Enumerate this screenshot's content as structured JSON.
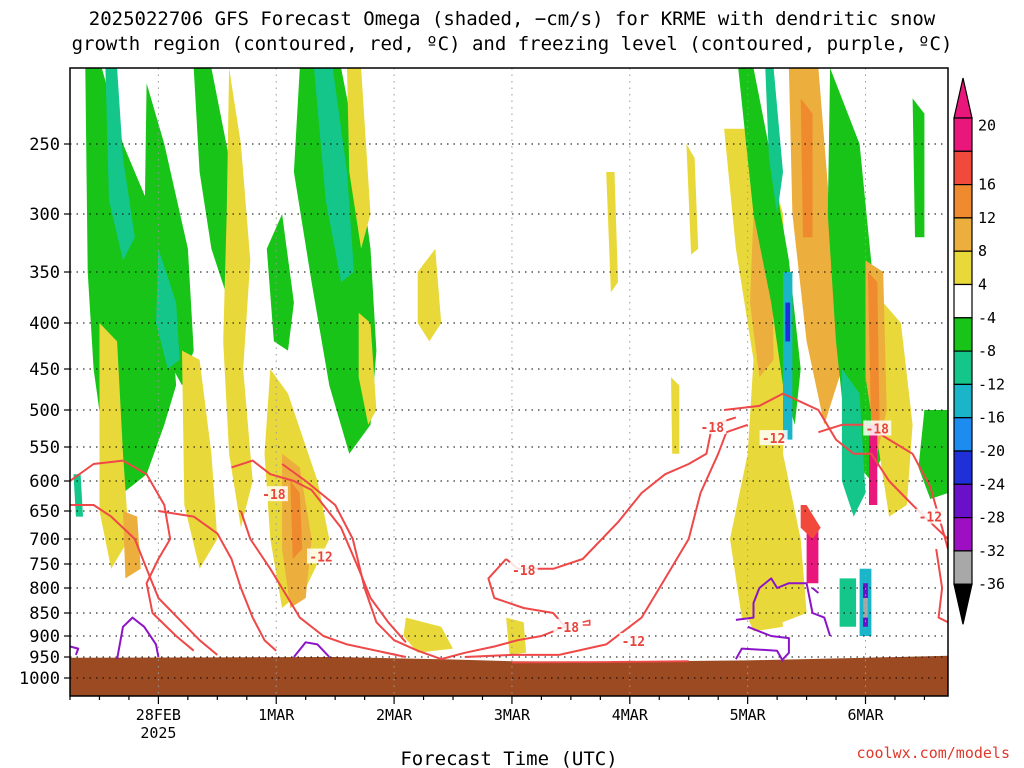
{
  "chart_data": {
    "type": "heatmap",
    "title_line1": "2025022706 GFS Forecast Omega (shaded, −cm/s) for KRME with dendritic snow",
    "title_line2": "growth region (contoured, red, ºC) and freezing level (contoured, purple, ºC)",
    "xlabel": "Forecast Time (UTC)",
    "x_ticks": [
      "28FEB",
      "1MAR",
      "2MAR",
      "3MAR",
      "4MAR",
      "5MAR",
      "6MAR"
    ],
    "x_year_label": "2025",
    "x_range_days": [
      -0.75,
      6.7
    ],
    "y_pressure_ticks": [
      250,
      300,
      350,
      400,
      450,
      500,
      550,
      600,
      650,
      700,
      750,
      800,
      850,
      900,
      950,
      1000
    ],
    "y_range_hpa": [
      200,
      1040
    ],
    "colorbar": {
      "labels": [
        "20",
        "16",
        "12",
        "8",
        "4",
        "-4",
        "-8",
        "-12",
        "-16",
        "-20",
        "-24",
        "-28",
        "-32",
        "-36"
      ],
      "bands": [
        {
          "color": "#e9167c"
        },
        {
          "color": "#f14a3d"
        },
        {
          "color": "#f08a2e"
        },
        {
          "color": "#ecae3c"
        },
        {
          "color": "#e9d83a"
        },
        {
          "color": "#ffffff"
        },
        {
          "color": "#17c417"
        },
        {
          "color": "#14c68a"
        },
        {
          "color": "#1bb5c9"
        },
        {
          "color": "#1d8cf0"
        },
        {
          "color": "#2030d8"
        },
        {
          "color": "#6a10c8"
        },
        {
          "color": "#9e0fc3"
        },
        {
          "color": "#a8a8a8"
        }
      ]
    },
    "contour_labels": [
      {
        "text": "-18",
        "day": 0.98,
        "p": 622
      },
      {
        "text": "-12",
        "day": 1.38,
        "p": 735
      },
      {
        "text": "-18",
        "day": 3.1,
        "p": 762
      },
      {
        "text": "-18",
        "day": 3.47,
        "p": 880
      },
      {
        "text": "-12",
        "day": 4.03,
        "p": 912
      },
      {
        "text": "-18",
        "day": 4.7,
        "p": 523
      },
      {
        "text": "-12",
        "day": 5.22,
        "p": 538
      },
      {
        "text": "-18",
        "day": 6.1,
        "p": 525
      },
      {
        "text": "-12",
        "day": 6.55,
        "p": 660
      }
    ],
    "ground_color": "#9c4a22",
    "credit": "coolwx.com/models"
  }
}
